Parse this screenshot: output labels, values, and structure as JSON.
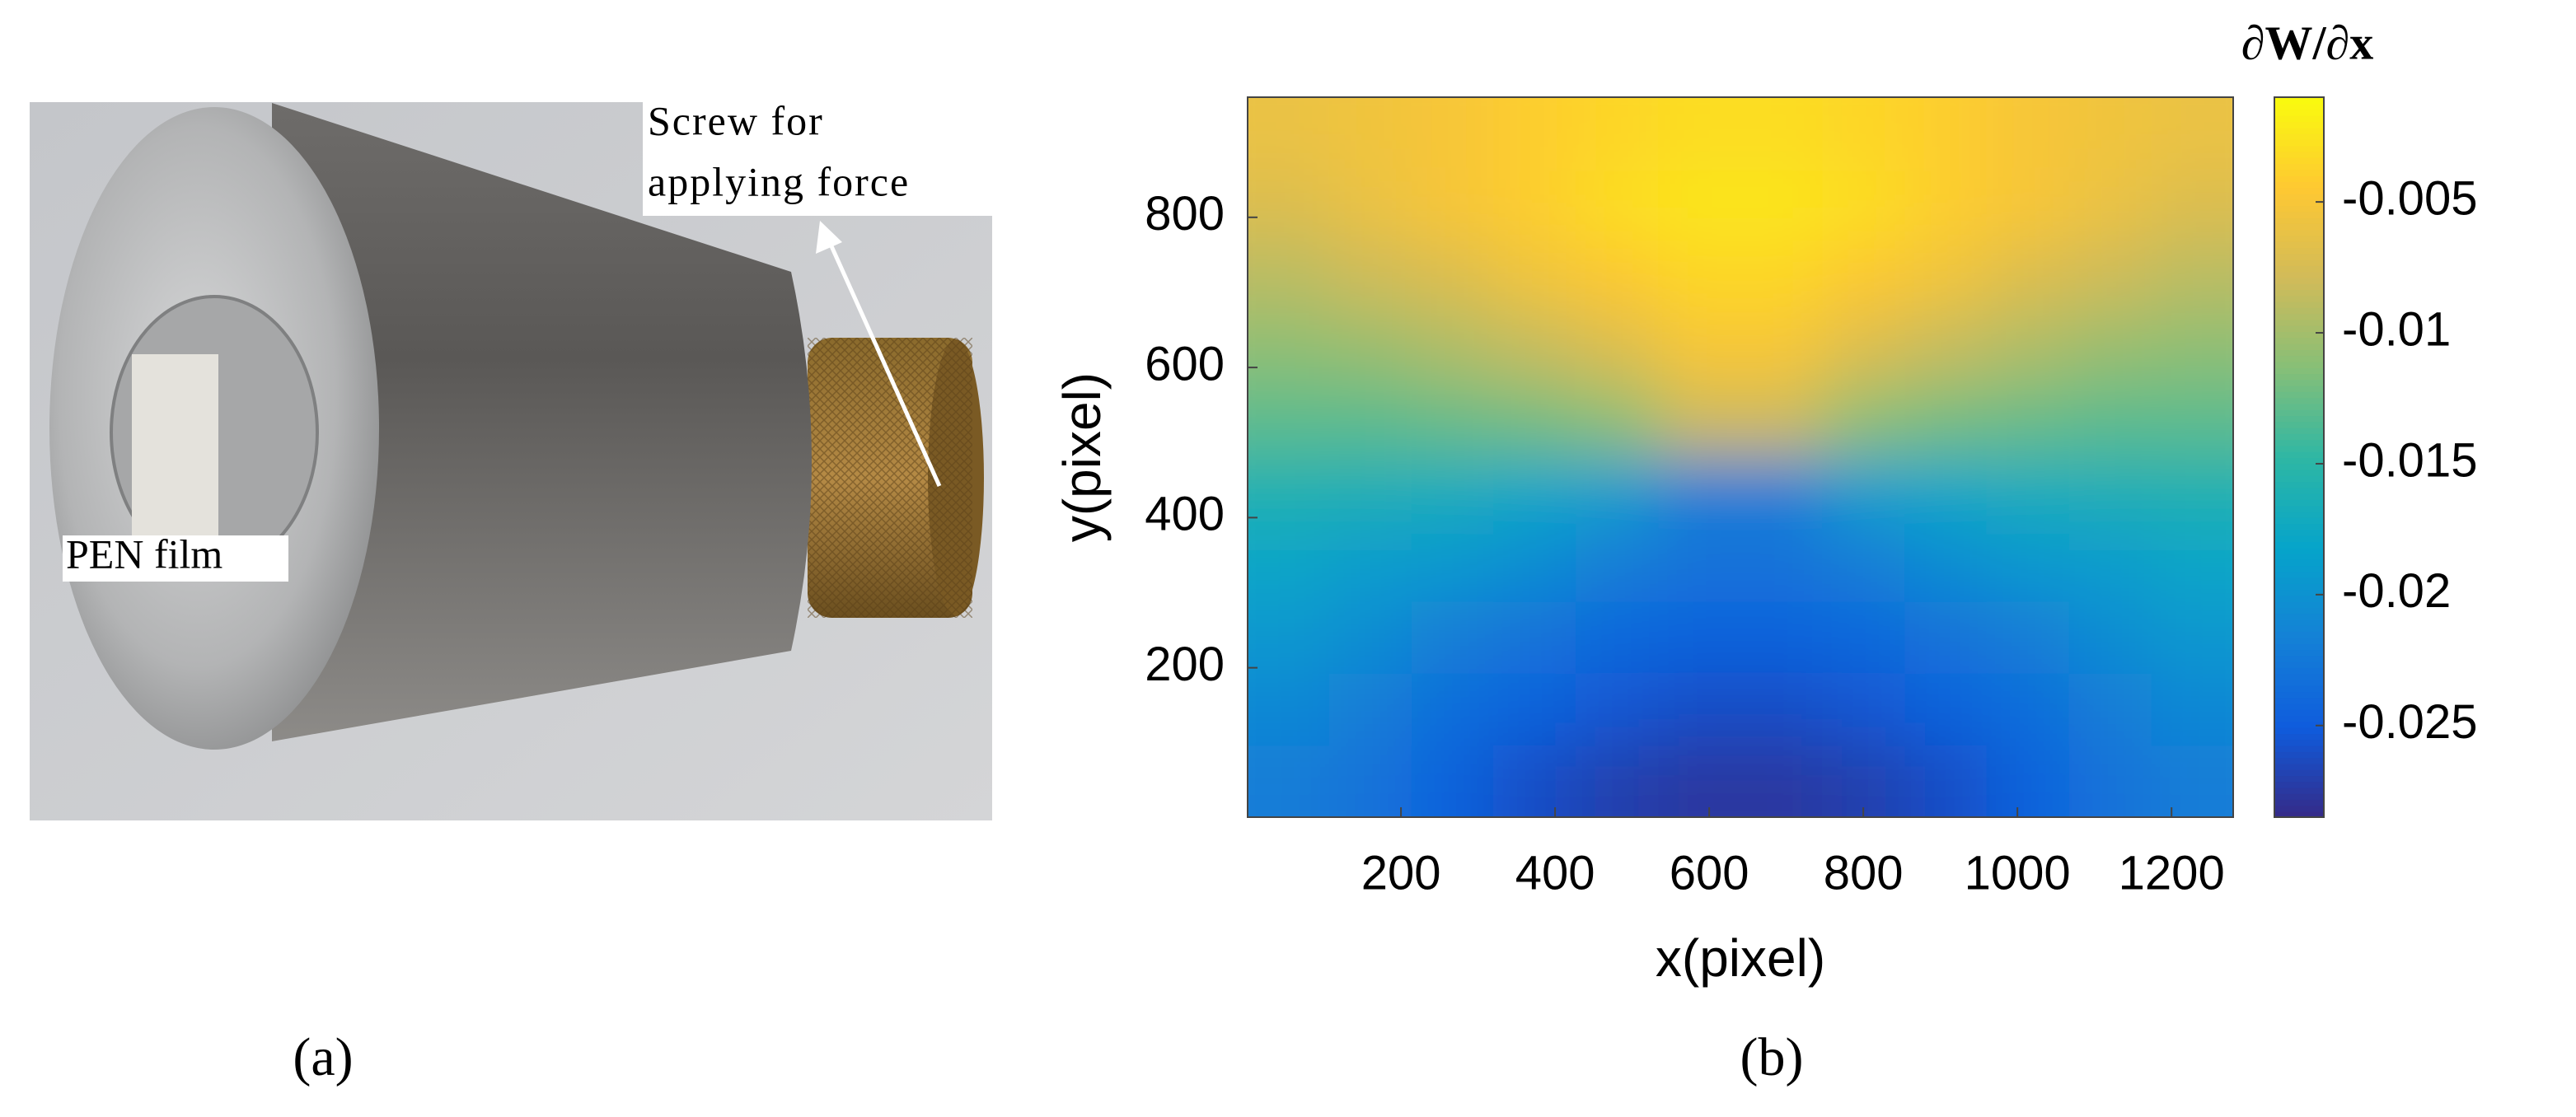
{
  "panel_a": {
    "screw_label": [
      "Screw for",
      "applying force"
    ],
    "film_label": "PEN film",
    "caption": "(a)"
  },
  "chart_data": {
    "type": "heatmap",
    "caption": "(b)",
    "xlabel": "x(pixel)",
    "ylabel": "y(pixel)",
    "colorbar_title": "∂W/∂x",
    "xlim": [
      1,
      1280
    ],
    "ylim": [
      1,
      960
    ],
    "xticks": [
      200,
      400,
      600,
      800,
      1000,
      1200
    ],
    "yticks": [
      200,
      400,
      600,
      800
    ],
    "clim": [
      -0.0285,
      -0.001
    ],
    "cticks": [
      -0.025,
      -0.02,
      -0.015,
      -0.01,
      -0.005
    ],
    "colormap": [
      "#352a87",
      "#0f5cdd",
      "#1481d6",
      "#06a4ca",
      "#2eb7a4",
      "#87bf77",
      "#d1bb59",
      "#fec832",
      "#f9fb0e"
    ],
    "x": [
      53,
      160,
      267,
      373,
      480,
      587,
      693,
      800,
      907,
      1013,
      1120,
      1227
    ],
    "y": [
      912,
      816,
      720,
      624,
      528,
      432,
      336,
      240,
      144,
      48
    ],
    "z": [
      [
        -0.006,
        -0.0055,
        -0.005,
        -0.004,
        -0.0035,
        -0.003,
        -0.003,
        -0.0035,
        -0.004,
        -0.005,
        -0.0055,
        -0.006
      ],
      [
        -0.007,
        -0.006,
        -0.005,
        -0.004,
        -0.003,
        -0.0025,
        -0.0025,
        -0.003,
        -0.004,
        -0.005,
        -0.006,
        -0.007
      ],
      [
        -0.009,
        -0.008,
        -0.007,
        -0.0055,
        -0.0045,
        -0.0035,
        -0.0035,
        -0.0045,
        -0.0055,
        -0.007,
        -0.008,
        -0.009
      ],
      [
        -0.011,
        -0.0105,
        -0.0095,
        -0.0085,
        -0.007,
        -0.005,
        -0.005,
        -0.007,
        -0.0085,
        -0.0095,
        -0.0105,
        -0.011
      ],
      [
        -0.013,
        -0.013,
        -0.0125,
        -0.012,
        -0.011,
        -0.008,
        -0.008,
        -0.011,
        -0.012,
        -0.0125,
        -0.013,
        -0.013
      ],
      [
        -0.016,
        -0.0165,
        -0.017,
        -0.018,
        -0.019,
        -0.022,
        -0.022,
        -0.019,
        -0.018,
        -0.017,
        -0.0165,
        -0.016
      ],
      [
        -0.018,
        -0.019,
        -0.0195,
        -0.0205,
        -0.022,
        -0.023,
        -0.023,
        -0.022,
        -0.0205,
        -0.0195,
        -0.019,
        -0.018
      ],
      [
        -0.0195,
        -0.0205,
        -0.022,
        -0.023,
        -0.024,
        -0.0245,
        -0.0245,
        -0.024,
        -0.023,
        -0.022,
        -0.0205,
        -0.0195
      ],
      [
        -0.021,
        -0.022,
        -0.0235,
        -0.0245,
        -0.0255,
        -0.026,
        -0.026,
        -0.0255,
        -0.0245,
        -0.0235,
        -0.022,
        -0.021
      ],
      [
        -0.022,
        -0.023,
        -0.0245,
        -0.026,
        -0.027,
        -0.0275,
        -0.0275,
        -0.027,
        -0.026,
        -0.0245,
        -0.023,
        -0.022
      ]
    ]
  }
}
